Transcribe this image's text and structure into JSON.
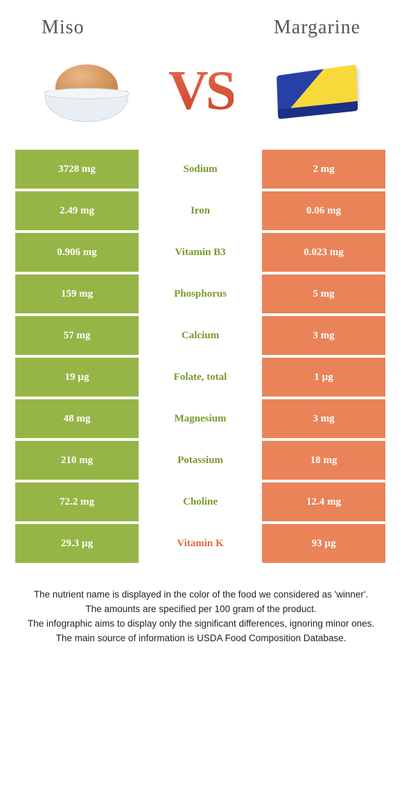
{
  "colors": {
    "leftBg": "#96b547",
    "rightBg": "#ea8358",
    "leftText": "#7a9a2e",
    "rightText": "#e06a40",
    "cellText": "#ffffff"
  },
  "header": {
    "left": "Miso",
    "right": "Margarine",
    "vs": "VS"
  },
  "rows": [
    {
      "left": "3728 mg",
      "name": "Sodium",
      "right": "2 mg",
      "winner": "left"
    },
    {
      "left": "2.49 mg",
      "name": "Iron",
      "right": "0.06 mg",
      "winner": "left"
    },
    {
      "left": "0.906 mg",
      "name": "Vitamin B3",
      "right": "0.023 mg",
      "winner": "left"
    },
    {
      "left": "159 mg",
      "name": "Phosphorus",
      "right": "5 mg",
      "winner": "left"
    },
    {
      "left": "57 mg",
      "name": "Calcium",
      "right": "3 mg",
      "winner": "left"
    },
    {
      "left": "19 µg",
      "name": "Folate, total",
      "right": "1 µg",
      "winner": "left"
    },
    {
      "left": "48 mg",
      "name": "Magnesium",
      "right": "3 mg",
      "winner": "left"
    },
    {
      "left": "210 mg",
      "name": "Potassium",
      "right": "18 mg",
      "winner": "left"
    },
    {
      "left": "72.2 mg",
      "name": "Choline",
      "right": "12.4 mg",
      "winner": "left"
    },
    {
      "left": "29.3 µg",
      "name": "Vitamin K",
      "right": "93 µg",
      "winner": "right"
    }
  ],
  "footnotes": [
    "The nutrient name is displayed in the color of the food we considered as 'winner'.",
    "The amounts are specified per 100 gram of the product.",
    "The infographic aims to display only the significant differences, ignoring minor ones.",
    "The main source of information is USDA Food Composition Database."
  ]
}
